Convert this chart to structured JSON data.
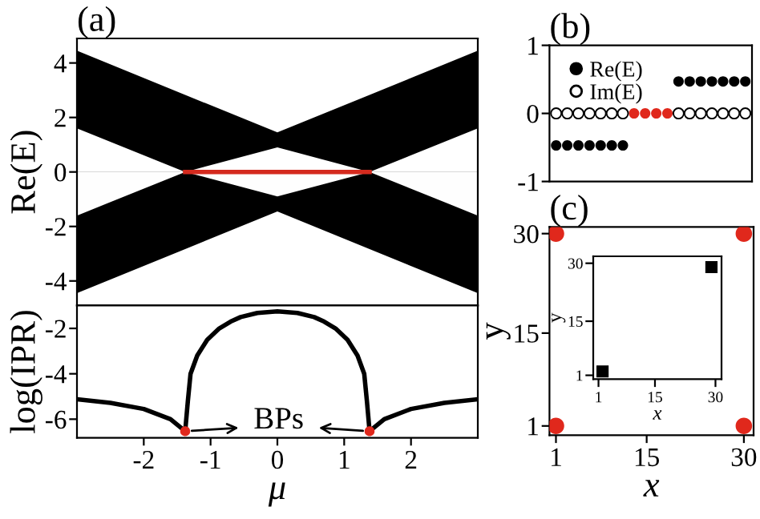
{
  "chart_data": [
    {
      "type": "area",
      "title": "(a)",
      "ylabel": "Re(E)",
      "x": [
        -3,
        -1.38,
        0,
        1.38,
        3
      ],
      "xlim": [
        -3,
        3
      ],
      "ylim": [
        -4.9,
        4.9
      ],
      "yticks": [
        {
          "value": -4,
          "label": "-4"
        },
        {
          "value": -2,
          "label": "-2"
        },
        0,
        2,
        4
      ],
      "tick_labels": "y",
      "series": [
        {
          "color": "#000000",
          "values": [
            4.45,
            2.83,
            1.45,
            2.83,
            4.45
          ]
        },
        {
          "color": "#000000",
          "values": [
            -4.45,
            -2.83,
            -1.45,
            -2.83,
            -4.45
          ]
        },
        {
          "color": "#ffffff",
          "values": [
            1.6,
            0,
            0.9,
            0,
            1.6
          ]
        },
        {
          "color": "#fefefe",
          "values": [
            -1.6,
            0,
            -0.9,
            0,
            -1.6
          ]
        },
        {
          "type": "line",
          "color": "#d42a1e",
          "x": [
            -1.38,
            0,
            1.38
          ],
          "values": [
            0,
            0,
            0
          ]
        }
      ]
    },
    {
      "type": "line",
      "ylabel": "log(IPR)",
      "xlabel": "μ",
      "xlim": [
        -3,
        3
      ],
      "xticks": [
        {
          "value": -2,
          "label": "-2"
        },
        {
          "value": -1,
          "label": "-1"
        },
        0,
        1,
        2
      ],
      "ylim": [
        -6.82,
        -0.99
      ],
      "yticks": [
        {
          "value": -6,
          "label": "-6"
        },
        {
          "value": -4,
          "label": "-4"
        },
        {
          "value": -2,
          "label": "-2"
        }
      ],
      "annotations": [
        {
          "text": "BPs",
          "x": -1.38,
          "y": -6.53
        }
      ],
      "series": [
        {
          "color": "#000000",
          "x": [
            -3,
            -2.5,
            -2,
            -1.6,
            -1.38,
            -1.34,
            -1.3,
            -1.2,
            -1.05,
            -0.87,
            -0.7,
            -0.55,
            -0.3,
            0,
            0.3,
            0.55,
            0.7,
            0.87,
            1.05,
            1.2,
            1.3,
            1.34,
            1.38,
            1.6,
            2,
            2.5,
            3
          ],
          "values": [
            -5.12,
            -5.28,
            -5.55,
            -6.0,
            -6.53,
            -5.2,
            -4.0,
            -3.2,
            -2.5,
            -2.0,
            -1.7,
            -1.5,
            -1.32,
            -1.25,
            -1.32,
            -1.5,
            -1.7,
            -2.0,
            -2.5,
            -3.2,
            -4.0,
            -5.2,
            -6.53,
            -6.0,
            -5.55,
            -5.28,
            -5.12
          ]
        },
        {
          "type": "scatter",
          "color": "#e0281c",
          "x": [
            -1.38,
            1.38
          ],
          "values": [
            -6.53,
            -6.53
          ]
        }
      ]
    },
    {
      "type": "scatter",
      "title": "(b)",
      "categories": [
        null,
        null,
        null,
        null,
        null,
        null,
        null,
        null,
        null,
        null,
        null,
        null,
        null,
        null,
        null,
        null,
        null,
        null
      ],
      "ylim": [
        -1,
        1
      ],
      "yticks": [
        {
          "value": -1,
          "label": "-1"
        },
        0,
        1
      ],
      "legend": "top left",
      "marker": "circle",
      "series": [
        {
          "name": "Re(E)",
          "color": "#000000",
          "colors": [
            "#000000",
            "#000000",
            "#000000",
            "#000000",
            "#000000",
            "#000000",
            "#000000",
            "#e0281c",
            "#e0281c",
            "#e0281c",
            "#e0281c",
            "#000000",
            "#000000",
            "#000000",
            "#000000",
            "#000000",
            "#000000",
            "#000000"
          ],
          "values": [
            -0.47,
            -0.47,
            -0.47,
            -0.47,
            -0.47,
            -0.47,
            -0.47,
            0,
            0,
            0,
            0,
            0.47,
            0.47,
            0.47,
            0.47,
            0.47,
            0.47,
            0.47
          ]
        },
        {
          "name": "Im(E)",
          "color": "#ffffff",
          "values": [
            0,
            0,
            0,
            0,
            0,
            0,
            0,
            null,
            null,
            null,
            null,
            0,
            0,
            0,
            0,
            0,
            0,
            0
          ]
        }
      ]
    },
    {
      "type": "scatter",
      "title": "(c)",
      "xlabel": "x",
      "ylabel": "y",
      "xlim": [
        0,
        31.5
      ],
      "xticks": [
        1,
        15,
        30
      ],
      "ylim": [
        -0.4,
        31
      ],
      "yticks": [
        1,
        15,
        30
      ],
      "marker": "circle",
      "series": [
        {
          "color": "#e0281c",
          "x": [
            1,
            1,
            30,
            30
          ],
          "values": [
            1,
            30,
            1,
            30
          ]
        }
      ]
    },
    {
      "type": "scatter",
      "xlabel": "x",
      "ylabel": "y",
      "xlim": [
        -0.3,
        31.5
      ],
      "xticks": [
        1,
        15,
        30
      ],
      "ylim": [
        0,
        31.8
      ],
      "yticks": [
        1,
        15,
        30
      ],
      "marker": "square",
      "series": [
        {
          "color": "#000000",
          "x": [
            2,
            29
          ],
          "values": [
            2,
            29
          ]
        }
      ]
    }
  ]
}
